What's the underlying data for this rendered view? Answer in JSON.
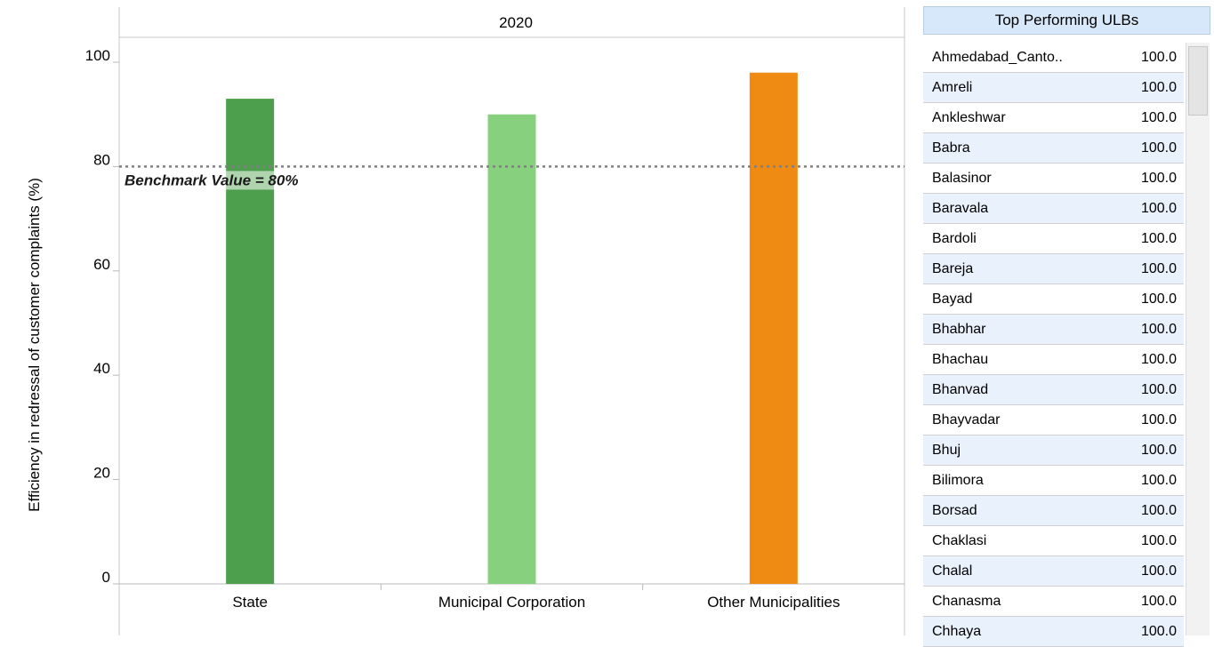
{
  "chart_data": {
    "type": "bar",
    "panel_title": "2020",
    "categories": [
      "State",
      "Municipal Corporation",
      "Other Municipalities"
    ],
    "values": [
      93,
      90,
      98
    ],
    "colors": [
      "#4e9f4d",
      "#86d07e",
      "#ef8a12"
    ],
    "ylabel": "Efficiency in redressal of customer complaints (%)",
    "xlabel": "",
    "ylim": [
      0,
      105
    ],
    "yticks": [
      0,
      20,
      40,
      60,
      80,
      100
    ],
    "grid": false,
    "reference_line": {
      "value": 80,
      "label": "Benchmark Value = 80%",
      "style": "dotted",
      "color": "#808080"
    }
  },
  "sidebar": {
    "title": "Top Performing ULBs",
    "rows": [
      {
        "name": "Ahmedabad_Canto..",
        "value": "100.0"
      },
      {
        "name": "Amreli",
        "value": "100.0"
      },
      {
        "name": "Ankleshwar",
        "value": "100.0"
      },
      {
        "name": "Babra",
        "value": "100.0"
      },
      {
        "name": "Balasinor",
        "value": "100.0"
      },
      {
        "name": "Baravala",
        "value": "100.0"
      },
      {
        "name": "Bardoli",
        "value": "100.0"
      },
      {
        "name": "Bareja",
        "value": "100.0"
      },
      {
        "name": "Bayad",
        "value": "100.0"
      },
      {
        "name": "Bhabhar",
        "value": "100.0"
      },
      {
        "name": "Bhachau",
        "value": "100.0"
      },
      {
        "name": "Bhanvad",
        "value": "100.0"
      },
      {
        "name": "Bhayvadar",
        "value": "100.0"
      },
      {
        "name": "Bhuj",
        "value": "100.0"
      },
      {
        "name": "Bilimora",
        "value": "100.0"
      },
      {
        "name": "Borsad",
        "value": "100.0"
      },
      {
        "name": "Chaklasi",
        "value": "100.0"
      },
      {
        "name": "Chalal",
        "value": "100.0"
      },
      {
        "name": "Chanasma",
        "value": "100.0"
      },
      {
        "name": "Chhaya",
        "value": "100.0"
      }
    ]
  }
}
